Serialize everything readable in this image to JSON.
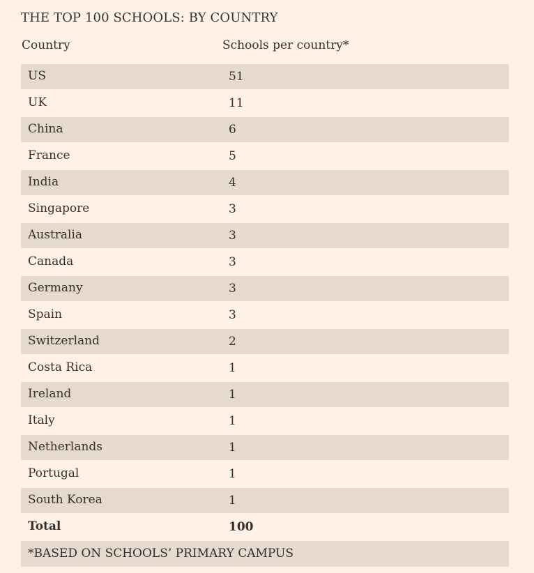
{
  "title": "THE TOP 100 SCHOOLS: BY COUNTRY",
  "columns": {
    "country": "Country",
    "schools": "Schools per country*"
  },
  "rows": [
    {
      "country": "US",
      "schools": "51"
    },
    {
      "country": "UK",
      "schools": "11"
    },
    {
      "country": "China",
      "schools": "6"
    },
    {
      "country": "France",
      "schools": "5"
    },
    {
      "country": "India",
      "schools": "4"
    },
    {
      "country": "Singapore",
      "schools": "3"
    },
    {
      "country": "Australia",
      "schools": "3"
    },
    {
      "country": "Canada",
      "schools": "3"
    },
    {
      "country": "Germany",
      "schools": "3"
    },
    {
      "country": "Spain",
      "schools": "3"
    },
    {
      "country": "Switzerland",
      "schools": "2"
    },
    {
      "country": "Costa Rica",
      "schools": "1"
    },
    {
      "country": "Ireland",
      "schools": "1"
    },
    {
      "country": "Italy",
      "schools": "1"
    },
    {
      "country": "Netherlands",
      "schools": "1"
    },
    {
      "country": "Portugal",
      "schools": "1"
    },
    {
      "country": "South Korea",
      "schools": "1"
    }
  ],
  "total": {
    "label": "Total",
    "value": "100"
  },
  "footnote": "*BASED ON SCHOOLS’ PRIMARY CAMPUS",
  "colors": {
    "background": "#fff1e6",
    "row_shade": "#e6d9ce",
    "text": "#33302e"
  }
}
